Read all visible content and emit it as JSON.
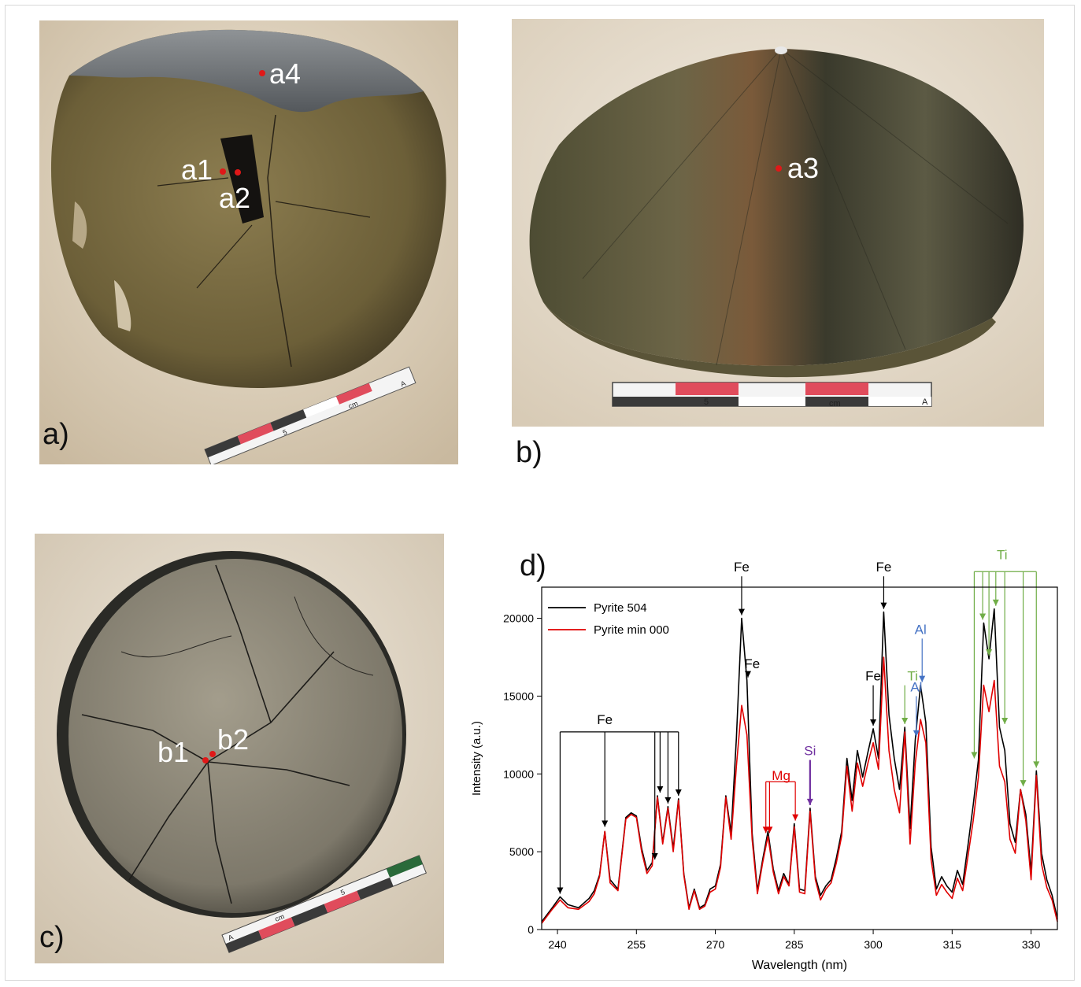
{
  "panels": [
    {
      "label": "a)",
      "spots": [
        "a1",
        "a2",
        "a4"
      ],
      "ruler": {
        "number": "5",
        "unit": "cm",
        "letter": "A"
      }
    },
    {
      "label": "b)",
      "spots": [
        "a3"
      ],
      "ruler": {
        "number": "5",
        "unit": "cm",
        "letter": "A"
      }
    },
    {
      "label": "c)",
      "spots": [
        "b1",
        "b2"
      ],
      "ruler": {
        "number": "5",
        "unit": "cm",
        "letter": "A"
      }
    },
    {
      "label": "d)"
    }
  ],
  "colors": {
    "spot": "#e01818",
    "pyrite504": "#000000",
    "pyritemin000": "#e00000",
    "Fe": "#000000",
    "Mg": "#e00000",
    "Si": "#7030a0",
    "Al": "#4472c4",
    "Ti": "#70ad47"
  },
  "chart_data": {
    "type": "line",
    "xlabel": "Wavelength (nm)",
    "ylabel": "Intensity (a.u.)",
    "xlim": [
      237,
      335
    ],
    "ylim": [
      0,
      22000
    ],
    "xticks": [
      240,
      255,
      270,
      285,
      300,
      315,
      330
    ],
    "yticks": [
      0,
      5000,
      10000,
      15000,
      20000
    ],
    "legend_position": "top-left",
    "series": [
      {
        "name": "Pyrite 504",
        "color": "#000000",
        "points": [
          [
            237,
            500
          ],
          [
            239,
            1400
          ],
          [
            240.5,
            2100
          ],
          [
            242,
            1600
          ],
          [
            244,
            1400
          ],
          [
            246,
            2000
          ],
          [
            247,
            2500
          ],
          [
            248,
            3500
          ],
          [
            249,
            6300
          ],
          [
            250,
            3200
          ],
          [
            251.5,
            2600
          ],
          [
            253,
            7200
          ],
          [
            254,
            7500
          ],
          [
            255,
            7300
          ],
          [
            256,
            5200
          ],
          [
            257,
            3800
          ],
          [
            258,
            4300
          ],
          [
            259,
            8600
          ],
          [
            260,
            5600
          ],
          [
            261,
            7900
          ],
          [
            262,
            5200
          ],
          [
            263,
            8400
          ],
          [
            264,
            3600
          ],
          [
            265,
            1400
          ],
          [
            266,
            2600
          ],
          [
            267,
            1400
          ],
          [
            268,
            1600
          ],
          [
            269,
            2600
          ],
          [
            270,
            2800
          ],
          [
            271,
            4200
          ],
          [
            272,
            8600
          ],
          [
            273,
            6200
          ],
          [
            274,
            12300
          ],
          [
            275,
            20000
          ],
          [
            276,
            16000
          ],
          [
            277,
            6200
          ],
          [
            278,
            2500
          ],
          [
            279,
            4500
          ],
          [
            280,
            6300
          ],
          [
            281,
            3900
          ],
          [
            282,
            2500
          ],
          [
            283,
            3600
          ],
          [
            284,
            2900
          ],
          [
            285,
            6800
          ],
          [
            286,
            2600
          ],
          [
            287,
            2500
          ],
          [
            288,
            7800
          ],
          [
            289,
            3400
          ],
          [
            290,
            2200
          ],
          [
            291,
            2800
          ],
          [
            292,
            3200
          ],
          [
            293,
            4600
          ],
          [
            294,
            6300
          ],
          [
            295,
            11000
          ],
          [
            296,
            8300
          ],
          [
            297,
            11500
          ],
          [
            298,
            9800
          ],
          [
            299,
            11400
          ],
          [
            300,
            12900
          ],
          [
            301,
            11000
          ],
          [
            302,
            20400
          ],
          [
            303,
            13800
          ],
          [
            304,
            11000
          ],
          [
            305,
            9000
          ],
          [
            306,
            13000
          ],
          [
            307,
            6500
          ],
          [
            308,
            12200
          ],
          [
            309,
            15700
          ],
          [
            310,
            13300
          ],
          [
            311,
            5300
          ],
          [
            312,
            2600
          ],
          [
            313,
            3400
          ],
          [
            314,
            2800
          ],
          [
            315,
            2400
          ],
          [
            316,
            3800
          ],
          [
            317,
            2900
          ],
          [
            318,
            5400
          ],
          [
            319,
            8000
          ],
          [
            320,
            10900
          ],
          [
            321,
            19700
          ],
          [
            322,
            17400
          ],
          [
            323,
            20600
          ],
          [
            324,
            13000
          ],
          [
            325,
            11500
          ],
          [
            326,
            6800
          ],
          [
            327,
            5600
          ],
          [
            328,
            9000
          ],
          [
            329,
            7400
          ],
          [
            330,
            3700
          ],
          [
            331,
            10200
          ],
          [
            332,
            4900
          ],
          [
            333,
            3200
          ],
          [
            334,
            2200
          ],
          [
            335,
            700
          ]
        ]
      },
      {
        "name": "Pyrite min 000",
        "color": "#e00000",
        "points": [
          [
            237,
            400
          ],
          [
            239,
            1300
          ],
          [
            240.5,
            1900
          ],
          [
            242,
            1400
          ],
          [
            244,
            1300
          ],
          [
            246,
            1800
          ],
          [
            247,
            2300
          ],
          [
            248,
            3400
          ],
          [
            249,
            6300
          ],
          [
            250,
            3000
          ],
          [
            251.5,
            2500
          ],
          [
            253,
            7100
          ],
          [
            254,
            7400
          ],
          [
            255,
            7200
          ],
          [
            256,
            5000
          ],
          [
            257,
            3600
          ],
          [
            258,
            4100
          ],
          [
            259,
            8500
          ],
          [
            260,
            5500
          ],
          [
            261,
            7800
          ],
          [
            262,
            5000
          ],
          [
            263,
            8300
          ],
          [
            264,
            3500
          ],
          [
            265,
            1300
          ],
          [
            266,
            2500
          ],
          [
            267,
            1300
          ],
          [
            268,
            1500
          ],
          [
            269,
            2400
          ],
          [
            270,
            2600
          ],
          [
            271,
            4000
          ],
          [
            272,
            8500
          ],
          [
            273,
            5800
          ],
          [
            274,
            10500
          ],
          [
            275,
            14400
          ],
          [
            276,
            12500
          ],
          [
            277,
            5800
          ],
          [
            278,
            2300
          ],
          [
            279,
            4300
          ],
          [
            280,
            6000
          ],
          [
            281,
            3700
          ],
          [
            282,
            2300
          ],
          [
            283,
            3400
          ],
          [
            284,
            2800
          ],
          [
            285,
            6600
          ],
          [
            286,
            2400
          ],
          [
            287,
            2300
          ],
          [
            288,
            7600
          ],
          [
            289,
            3200
          ],
          [
            290,
            1900
          ],
          [
            291,
            2600
          ],
          [
            292,
            3000
          ],
          [
            293,
            4300
          ],
          [
            294,
            6000
          ],
          [
            295,
            10500
          ],
          [
            296,
            7600
          ],
          [
            297,
            10700
          ],
          [
            298,
            9200
          ],
          [
            299,
            10700
          ],
          [
            300,
            12000
          ],
          [
            301,
            10300
          ],
          [
            302,
            17500
          ],
          [
            303,
            11500
          ],
          [
            304,
            9000
          ],
          [
            305,
            7500
          ],
          [
            306,
            12700
          ],
          [
            307,
            5500
          ],
          [
            308,
            10700
          ],
          [
            309,
            13500
          ],
          [
            310,
            12000
          ],
          [
            311,
            4500
          ],
          [
            312,
            2200
          ],
          [
            313,
            2900
          ],
          [
            314,
            2400
          ],
          [
            315,
            2000
          ],
          [
            316,
            3300
          ],
          [
            317,
            2500
          ],
          [
            318,
            4700
          ],
          [
            319,
            7000
          ],
          [
            320,
            9800
          ],
          [
            321,
            15700
          ],
          [
            322,
            14000
          ],
          [
            323,
            16000
          ],
          [
            324,
            10500
          ],
          [
            325,
            9500
          ],
          [
            326,
            5800
          ],
          [
            327,
            4900
          ],
          [
            328,
            9000
          ],
          [
            329,
            7000
          ],
          [
            330,
            3200
          ],
          [
            331,
            9900
          ],
          [
            332,
            4200
          ],
          [
            333,
            2700
          ],
          [
            334,
            1900
          ],
          [
            335,
            500
          ]
        ]
      }
    ],
    "annotations": [
      {
        "text": "Fe",
        "element": "Fe",
        "color": "#000000",
        "style": "bracket",
        "label_x": 249,
        "label_y": 13200,
        "bar_y": 12700,
        "targets": [
          [
            240.5,
            2300
          ],
          [
            249,
            6600
          ],
          [
            258.5,
            4500
          ],
          [
            259.5,
            8800
          ],
          [
            261,
            8100
          ],
          [
            263,
            8600
          ]
        ]
      },
      {
        "text": "Fe",
        "element": "Fe",
        "color": "#000000",
        "style": "arrow",
        "label_x": 275,
        "label_y": 23000,
        "targets": [
          [
            275,
            20200
          ]
        ]
      },
      {
        "text": "Fe",
        "element": "Fe",
        "color": "#000000",
        "style": "arrow",
        "label_x": 277,
        "label_y": 16800,
        "targets": [
          [
            276.2,
            16200
          ]
        ]
      },
      {
        "text": "Fe",
        "element": "Fe",
        "color": "#000000",
        "style": "arrow",
        "label_x": 302,
        "label_y": 23000,
        "targets": [
          [
            302,
            20600
          ]
        ]
      },
      {
        "text": "Fe",
        "element": "Fe",
        "color": "#000000",
        "style": "arrow",
        "label_x": 300,
        "label_y": 16000,
        "targets": [
          [
            300,
            13100
          ]
        ]
      },
      {
        "text": "Mg",
        "element": "Mg",
        "color": "#e00000",
        "style": "bracket",
        "label_x": 282.5,
        "label_y": 9600,
        "bar_y": 9500,
        "targets": [
          [
            279.6,
            6200
          ],
          [
            280.3,
            6200
          ],
          [
            285.2,
            7000
          ]
        ]
      },
      {
        "text": "Si",
        "element": "Si",
        "color": "#7030a0",
        "style": "arrow",
        "label_x": 288,
        "label_y": 11200,
        "targets": [
          [
            288,
            8000
          ]
        ]
      },
      {
        "text": "Ti",
        "element": "Ti",
        "color": "#70ad47",
        "style": "arrow",
        "label_x": 307.5,
        "label_y": 16000,
        "targets": [
          [
            306,
            13200
          ]
        ]
      },
      {
        "text": "Al",
        "element": "Al",
        "color": "#4472c4",
        "style": "arrow",
        "label_x": 309,
        "label_y": 19000,
        "targets": [
          [
            309.3,
            15900
          ]
        ]
      },
      {
        "text": "Al",
        "element": "Al",
        "color": "#4472c4",
        "style": "arrow",
        "label_x": 308.2,
        "label_y": 15300,
        "targets": [
          [
            308.2,
            12400
          ]
        ]
      },
      {
        "text": "Ti",
        "element": "Ti",
        "color": "#70ad47",
        "style": "bracket",
        "label_x": 324.5,
        "label_y": 23800,
        "bar_y": 23000,
        "targets": [
          [
            319.2,
            11000
          ],
          [
            320.8,
            19900
          ],
          [
            322,
            17600
          ],
          [
            323.3,
            20800
          ],
          [
            325,
            13200
          ],
          [
            328.5,
            9200
          ],
          [
            331,
            10400
          ]
        ]
      }
    ]
  }
}
